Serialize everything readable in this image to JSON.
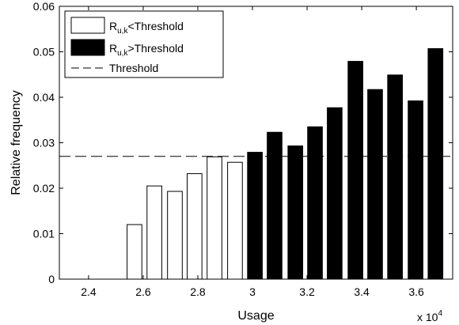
{
  "chart_data": {
    "type": "bar",
    "x_label": "Usage",
    "y_label": "Relative frequency",
    "x_exponent_label": "x 10",
    "x_exponent": "4",
    "xlim": [
      2.293,
      3.733
    ],
    "ylim": [
      0,
      0.06
    ],
    "xticks": [
      2.4,
      2.6,
      2.8,
      3,
      3.2,
      3.4,
      3.6
    ],
    "yticks": [
      0,
      0.01,
      0.02,
      0.03,
      0.04,
      0.05,
      0.06
    ],
    "series": [
      {
        "name": [
          "R",
          "u,k",
          "<Threshold"
        ],
        "color": "#ffffff",
        "x": [
          2.568,
          2.641,
          2.716,
          2.788,
          2.861,
          2.936
        ],
        "values": [
          0.012,
          0.0205,
          0.0193,
          0.0232,
          0.0269,
          0.0257
        ]
      },
      {
        "name": [
          "R",
          "u,k",
          ">Threshold"
        ],
        "color": "#000000",
        "x": [
          3.009,
          3.081,
          3.157,
          3.229,
          3.301,
          3.377,
          3.449,
          3.522,
          3.597,
          3.67
        ],
        "values": [
          0.0279,
          0.0323,
          0.0293,
          0.0335,
          0.0377,
          0.0479,
          0.0417,
          0.0449,
          0.0392,
          0.0507
        ]
      }
    ],
    "threshold": {
      "name": "Threshold",
      "value": 0.027
    },
    "legend": "upper left"
  }
}
